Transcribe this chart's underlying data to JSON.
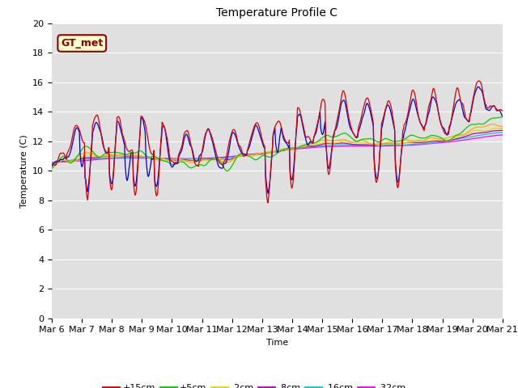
{
  "title": "Temperature Profile C",
  "xlabel": "Time",
  "ylabel": "Temperature (C)",
  "ylim": [
    0,
    20
  ],
  "yticks": [
    0,
    2,
    4,
    6,
    8,
    10,
    12,
    14,
    16,
    18,
    20
  ],
  "bg_color": "#e0e0e0",
  "legend_label": "GT_met",
  "series_colors": {
    "+15cm": "#dd0000",
    "+10cm": "#0000dd",
    "+5cm": "#00cc00",
    "0cm": "#ffaa00",
    "-2cm": "#dddd00",
    "-8cm": "#bb00bb",
    "-16cm": "#00cccc",
    "-32cm": "#ff00ff"
  },
  "n_points": 720,
  "font_size": 8,
  "xtick_labels": [
    "Mar 6",
    "Mar 7",
    "Mar 8",
    "Mar 9",
    "Mar 10",
    "Mar 11",
    "Mar 12",
    "Mar 13",
    "Mar 14",
    "Mar 15",
    "Mar 16",
    "Mar 17",
    "Mar 18",
    "Mar 19",
    "Mar 20",
    "Mar 21"
  ]
}
